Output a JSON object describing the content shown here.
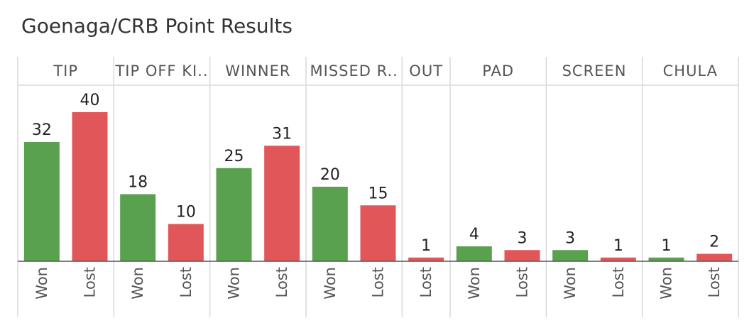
{
  "title": "Goenaga/CRB Point Results",
  "colors": {
    "Won": "#59a14f",
    "Lost": "#e15759"
  },
  "chart_data": {
    "type": "bar",
    "title": "Goenaga/CRB Point Results",
    "groups": [
      {
        "name": "TIP",
        "display": "TIP",
        "bars": [
          {
            "label": "Won",
            "value": 32
          },
          {
            "label": "Lost",
            "value": 40
          }
        ]
      },
      {
        "name": "TIP OFF KI..",
        "display": "TIP OFF KI..",
        "bars": [
          {
            "label": "Won",
            "value": 18
          },
          {
            "label": "Lost",
            "value": 10
          }
        ]
      },
      {
        "name": "WINNER",
        "display": "WINNER",
        "bars": [
          {
            "label": "Won",
            "value": 25
          },
          {
            "label": "Lost",
            "value": 31
          }
        ]
      },
      {
        "name": "MISSED R..",
        "display": "MISSED R..",
        "bars": [
          {
            "label": "Won",
            "value": 20
          },
          {
            "label": "Lost",
            "value": 15
          }
        ]
      },
      {
        "name": "OUT",
        "display": "OUT",
        "bars": [
          {
            "label": "Lost",
            "value": 1
          }
        ]
      },
      {
        "name": "PAD",
        "display": "PAD",
        "bars": [
          {
            "label": "Won",
            "value": 4
          },
          {
            "label": "Lost",
            "value": 3
          }
        ]
      },
      {
        "name": "SCREEN",
        "display": "SCREEN",
        "bars": [
          {
            "label": "Won",
            "value": 3
          },
          {
            "label": "Lost",
            "value": 1
          }
        ]
      },
      {
        "name": "CHULA",
        "display": "CHULA",
        "bars": [
          {
            "label": "Won",
            "value": 1
          },
          {
            "label": "Lost",
            "value": 2
          }
        ]
      }
    ],
    "ylim": [
      0,
      48
    ],
    "grid": false,
    "legend": "none"
  }
}
